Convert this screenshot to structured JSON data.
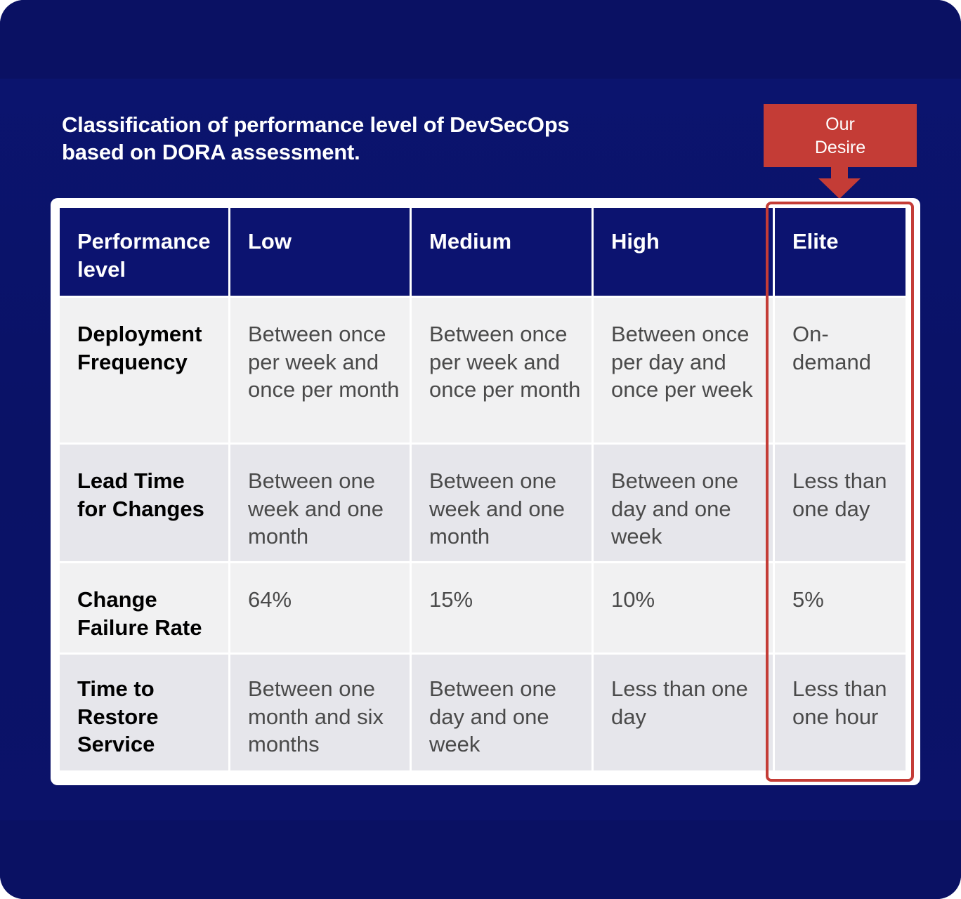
{
  "title": {
    "line1": "Classification of performance level of DevSecOps",
    "line2": "based on DORA assessment."
  },
  "callout": {
    "line1": "Our",
    "line2": "Desire",
    "color": "#c43c36"
  },
  "colors": {
    "background": "#0a1266",
    "header": "#0c1370",
    "row_light": "#f1f1f2",
    "row_dark": "#e6e6eb",
    "highlight": "#c43c36"
  },
  "table": {
    "headers": [
      "Performance level",
      "Low",
      "Medium",
      "High",
      "Elite"
    ],
    "rows": [
      {
        "label": "Deployment Frequency",
        "low": "Between once per week and once per month",
        "medium": "Between once per week and once per month",
        "high": "Between once per day and once per week",
        "elite": "On-demand"
      },
      {
        "label": "Lead Time for Changes",
        "low": "Between one week and one month",
        "medium": "Between one week and one month",
        "high": "Between one day and one week",
        "elite": "Less than one day"
      },
      {
        "label": "Change Failure Rate",
        "low": "64%",
        "medium": "15%",
        "high": "10%",
        "elite": "5%"
      },
      {
        "label": "Time to Restore Service",
        "low": "Between one month and six months",
        "medium": "Between one day and one week",
        "high": "Less than one day",
        "elite": "Less than one hour"
      }
    ]
  }
}
